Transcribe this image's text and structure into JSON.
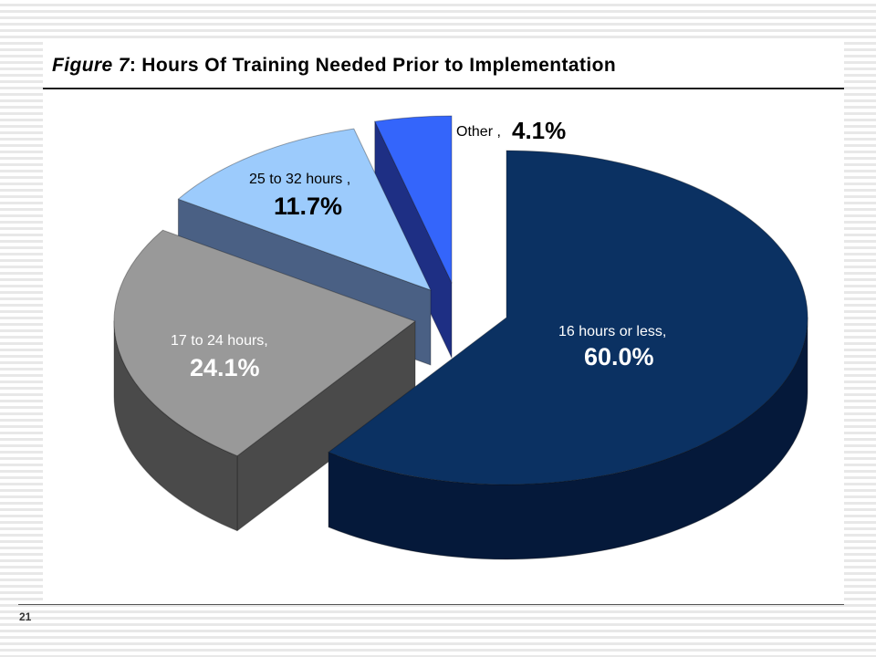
{
  "slide": {
    "figure_label": "Figure 7",
    "figure_separator": ":",
    "page_number": "21"
  },
  "chart_data": {
    "type": "pie",
    "title": "Hours Of Training Needed Prior to Implementation",
    "three_d": true,
    "exploded": true,
    "slices": [
      {
        "label": "16 hours or less,",
        "value": 60.0,
        "display": "60.0%",
        "color": "#0b3162",
        "side_color": "#05193a",
        "label_color": "#ffffff"
      },
      {
        "label": "17 to 24 hours,",
        "value": 24.1,
        "display": "24.1%",
        "color": "#999999",
        "side_color": "#4a4a4a",
        "label_color": "#ffffff"
      },
      {
        "label": "25 to 32 hours ,",
        "value": 11.7,
        "display": "11.7%",
        "color": "#9ccbfc",
        "side_color": "#4a6084",
        "label_color": "#000000"
      },
      {
        "label": "Other ,",
        "value": 4.1,
        "display": "4.1%",
        "color": "#3465fb",
        "side_color": "#1e2f84",
        "label_color": "#000000"
      }
    ]
  }
}
